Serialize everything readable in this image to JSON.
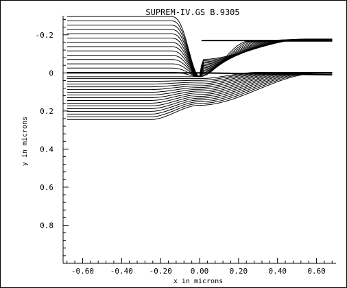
{
  "chart_data": {
    "type": "line",
    "title": "SUPREM-IV.GS B.9305",
    "xlabel": "x in microns",
    "ylabel": "y in microns",
    "xlim": [
      -0.7,
      0.7
    ],
    "ylim": [
      -0.3,
      1.0
    ],
    "y_inverted": true,
    "x_tick_labels": [
      "-0.60",
      "-0.40",
      "-0.20",
      "0.00",
      "0.20",
      "0.40",
      "0.60"
    ],
    "x_tick_values": [
      -0.6,
      -0.4,
      -0.2,
      0.0,
      0.2,
      0.4,
      0.6
    ],
    "y_tick_labels": [
      "-0.2",
      "0",
      "0.2",
      "0.4",
      "0.6",
      "0.8"
    ],
    "y_tick_values": [
      -0.2,
      0.0,
      0.2,
      0.4,
      0.6,
      0.8
    ],
    "grid": false,
    "line_color": "#000000",
    "families": [
      {
        "description_of_shape": "upper oxide contours converging to right-side layer near y=-0.17",
        "left_y_start": -0.296,
        "left_y_end": 0.02,
        "count": 15,
        "center_y": 0.02,
        "right_y": -0.172,
        "right_spread": 0.012
      },
      {
        "description_of_shape": "lower contours at surface, spreading from y=0.03 to y=0.24 on the left, converging near y=0.0 on the right",
        "left_y_start": 0.03,
        "left_y_end": 0.245,
        "count": 16,
        "center_y_start": 0.03,
        "center_y_end": 0.17,
        "right_y": 0.0,
        "right_spread": 0.006
      }
    ],
    "surface_lines_y": [
      0.0,
      -0.17
    ]
  }
}
